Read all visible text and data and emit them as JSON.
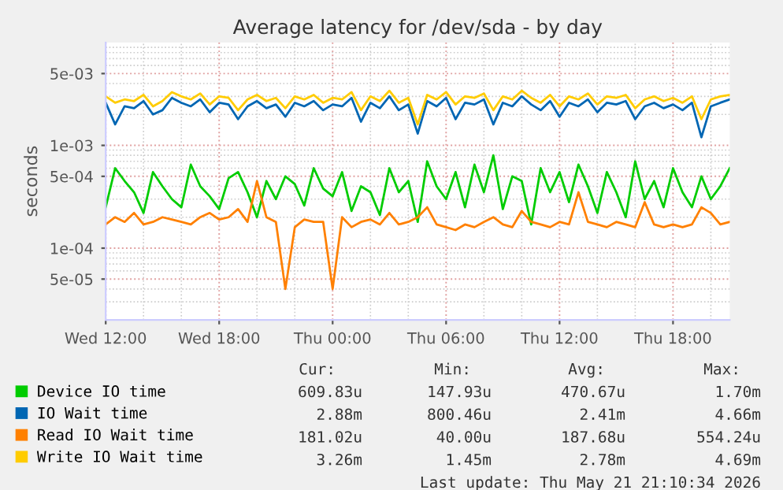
{
  "chart_data": {
    "type": "line",
    "title": "Average latency for /dev/sda - by day",
    "ylabel": "seconds",
    "log": "y",
    "grid": true,
    "legend": "bottom",
    "line_style": "solid",
    "marker": "none",
    "xlim": [
      "2026-05-20T12:00",
      "2026-05-21T21:00"
    ],
    "xticks": [
      {
        "value": "2026-05-20T12:00",
        "label": "Wed 12:00"
      },
      {
        "value": "2026-05-20T18:00",
        "label": "Wed 18:00"
      },
      {
        "value": "2026-05-21T00:00",
        "label": "Thu 00:00"
      },
      {
        "value": "2026-05-21T06:00",
        "label": "Thu 06:00"
      },
      {
        "value": "2026-05-21T12:00",
        "label": "Thu 12:00"
      },
      {
        "value": "2026-05-21T18:00",
        "label": "Thu 18:00"
      }
    ],
    "ylim": [
      2e-05,
      0.01
    ],
    "yticks": [
      {
        "value": 5e-05,
        "label": "5e-05"
      },
      {
        "value": 0.0001,
        "label": "1e-04"
      },
      {
        "value": 0.0005,
        "label": "5e-04"
      },
      {
        "value": 0.001,
        "label": "1e-03"
      },
      {
        "value": 0.005,
        "label": "5e-03"
      }
    ],
    "x": [
      "2026-05-20T12:00",
      "2026-05-20T12:30",
      "2026-05-20T13:00",
      "2026-05-20T13:30",
      "2026-05-20T14:00",
      "2026-05-20T14:30",
      "2026-05-20T15:00",
      "2026-05-20T15:30",
      "2026-05-20T16:00",
      "2026-05-20T16:30",
      "2026-05-20T17:00",
      "2026-05-20T17:30",
      "2026-05-20T18:00",
      "2026-05-20T18:30",
      "2026-05-20T19:00",
      "2026-05-20T19:30",
      "2026-05-20T20:00",
      "2026-05-20T20:30",
      "2026-05-20T21:00",
      "2026-05-20T21:30",
      "2026-05-20T22:00",
      "2026-05-20T22:30",
      "2026-05-20T23:00",
      "2026-05-20T23:30",
      "2026-05-21T00:00",
      "2026-05-21T00:30",
      "2026-05-21T01:00",
      "2026-05-21T01:30",
      "2026-05-21T02:00",
      "2026-05-21T02:30",
      "2026-05-21T03:00",
      "2026-05-21T03:30",
      "2026-05-21T04:00",
      "2026-05-21T04:30",
      "2026-05-21T05:00",
      "2026-05-21T05:30",
      "2026-05-21T06:00",
      "2026-05-21T06:30",
      "2026-05-21T07:00",
      "2026-05-21T07:30",
      "2026-05-21T08:00",
      "2026-05-21T08:30",
      "2026-05-21T09:00",
      "2026-05-21T09:30",
      "2026-05-21T10:00",
      "2026-05-21T10:30",
      "2026-05-21T11:00",
      "2026-05-21T11:30",
      "2026-05-21T12:00",
      "2026-05-21T12:30",
      "2026-05-21T13:00",
      "2026-05-21T13:30",
      "2026-05-21T14:00",
      "2026-05-21T14:30",
      "2026-05-21T15:00",
      "2026-05-21T15:30",
      "2026-05-21T16:00",
      "2026-05-21T16:30",
      "2026-05-21T17:00",
      "2026-05-21T17:30",
      "2026-05-21T18:00",
      "2026-05-21T18:30",
      "2026-05-21T19:00",
      "2026-05-21T19:30",
      "2026-05-21T20:00",
      "2026-05-21T20:30",
      "2026-05-21T21:00"
    ],
    "series": [
      {
        "name": "Device IO time",
        "color": "#00cc00",
        "values": [
          0.00025,
          0.0006,
          0.00045,
          0.00035,
          0.00022,
          0.00055,
          0.0004,
          0.0003,
          0.00025,
          0.00065,
          0.0004,
          0.00032,
          0.00024,
          0.00048,
          0.00055,
          0.00035,
          0.0002,
          0.00045,
          0.0003,
          0.0005,
          0.00042,
          0.00026,
          0.0006,
          0.00038,
          0.00032,
          0.00055,
          0.00023,
          0.0004,
          0.00035,
          0.00021,
          0.0006,
          0.00035,
          0.00045,
          0.00018,
          0.0007,
          0.0004,
          0.0003,
          0.00055,
          0.00025,
          0.00065,
          0.00035,
          0.0008,
          0.00024,
          0.0005,
          0.00045,
          0.00017,
          0.0006,
          0.00035,
          0.00055,
          0.00028,
          0.00065,
          0.0004,
          0.00022,
          0.00055,
          0.00035,
          0.0002,
          0.0007,
          0.0003,
          0.00045,
          0.00025,
          0.0006,
          0.00035,
          0.00025,
          0.0005,
          0.0003,
          0.0004,
          0.0006
        ]
      },
      {
        "name": "IO Wait time",
        "color": "#0066b3",
        "values": [
          0.0026,
          0.0016,
          0.0024,
          0.0023,
          0.0027,
          0.002,
          0.0022,
          0.0029,
          0.0026,
          0.0024,
          0.0028,
          0.0021,
          0.0026,
          0.0025,
          0.0018,
          0.0024,
          0.0027,
          0.0023,
          0.0025,
          0.0019,
          0.0026,
          0.0024,
          0.0027,
          0.0022,
          0.0025,
          0.0024,
          0.0029,
          0.0017,
          0.0026,
          0.0023,
          0.003,
          0.0022,
          0.0025,
          0.0013,
          0.0027,
          0.0024,
          0.0029,
          0.0018,
          0.0026,
          0.0025,
          0.0028,
          0.0016,
          0.0026,
          0.0024,
          0.003,
          0.0025,
          0.0022,
          0.0027,
          0.0019,
          0.0026,
          0.0024,
          0.0028,
          0.0021,
          0.0026,
          0.0025,
          0.0027,
          0.0018,
          0.0024,
          0.0026,
          0.0023,
          0.0025,
          0.0022,
          0.0026,
          0.0012,
          0.0024,
          0.0026,
          0.0028
        ]
      },
      {
        "name": "Read IO Wait time",
        "color": "#ff8000",
        "values": [
          0.00017,
          0.0002,
          0.00018,
          0.00022,
          0.00017,
          0.00018,
          0.0002,
          0.00019,
          0.00018,
          0.00017,
          0.0002,
          0.00022,
          0.00019,
          0.0002,
          0.00024,
          0.00018,
          0.00045,
          0.0002,
          0.00018,
          4e-05,
          0.00016,
          0.00019,
          0.00018,
          0.00018,
          4e-05,
          0.0002,
          0.00016,
          0.00018,
          0.00019,
          0.00017,
          0.00022,
          0.00017,
          0.00018,
          0.0002,
          0.00025,
          0.00017,
          0.00016,
          0.00015,
          0.00017,
          0.00016,
          0.00018,
          0.0002,
          0.00017,
          0.00016,
          0.00023,
          0.00018,
          0.00017,
          0.00016,
          0.00018,
          0.00017,
          0.00035,
          0.00018,
          0.00017,
          0.00016,
          0.00018,
          0.00017,
          0.00016,
          0.00028,
          0.00017,
          0.00016,
          0.00017,
          0.00016,
          0.00017,
          0.00025,
          0.00022,
          0.00017,
          0.00018
        ]
      },
      {
        "name": "Write IO Wait time",
        "color": "#ffcc00",
        "values": [
          0.003,
          0.0026,
          0.0028,
          0.0027,
          0.0031,
          0.0024,
          0.0027,
          0.0033,
          0.003,
          0.0028,
          0.0032,
          0.0025,
          0.003,
          0.0029,
          0.0022,
          0.0028,
          0.0031,
          0.0027,
          0.0029,
          0.0023,
          0.003,
          0.0028,
          0.0031,
          0.0026,
          0.0029,
          0.0028,
          0.0033,
          0.0022,
          0.003,
          0.0027,
          0.0034,
          0.0026,
          0.0029,
          0.0016,
          0.0031,
          0.0028,
          0.0033,
          0.0025,
          0.003,
          0.0029,
          0.0032,
          0.0022,
          0.003,
          0.0028,
          0.0034,
          0.0029,
          0.0026,
          0.0031,
          0.0024,
          0.003,
          0.0028,
          0.0032,
          0.0025,
          0.003,
          0.0029,
          0.0031,
          0.0023,
          0.0028,
          0.003,
          0.0027,
          0.0029,
          0.0026,
          0.003,
          0.0018,
          0.0028,
          0.003,
          0.0031
        ]
      }
    ],
    "annotations": [
      "Cur:",
      "Min:",
      "Avg:",
      "Max:",
      "609.83u",
      "147.93u",
      "470.67u",
      "1.70m",
      "2.88m",
      "800.46u",
      "2.41m",
      "4.66m",
      "181.02u",
      "40.00u",
      "187.68u",
      "554.24u",
      "3.26m",
      "1.45m",
      "2.78m",
      "4.69m",
      "Last update: Thu May 21 21:10:34 2026"
    ]
  }
}
